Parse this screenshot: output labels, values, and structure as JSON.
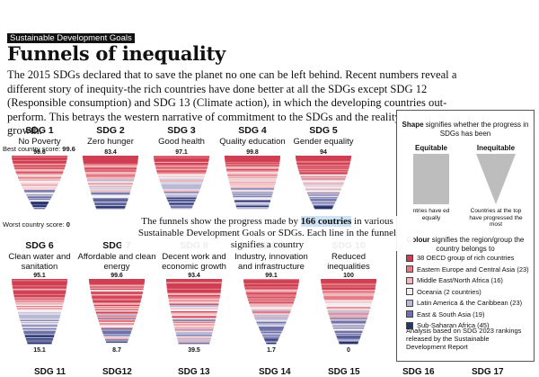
{
  "topic_label": "Sustainable Development Goals",
  "headline": "Funnels of inequality",
  "intro": "The 2015 SDGs declared that to save the planet no one can be left behind. Recent numbers reveal a different story of inequity-the rich countries have done better at all the SDGs except SDG 12 (Responsible consumption) and SDG 13 (Climate action), in which the developing countries out-perform. This betrays the western narrative of commitment to the SDGs and the reality of unequal growth.",
  "axis_notes": {
    "best_label": "Best country score:",
    "worst_label": "Worst country score:"
  },
  "caption": {
    "before": "The funnels show the progress made by ",
    "highlight": "166 coutries",
    "after": " in various Sustainable Development Goals or SDGs. Each line in the funnel signifies a country"
  },
  "legend": {
    "shape_heading_bold": "Shape",
    "shape_heading_rest": " signifies whether the progress in SDGs has been",
    "equitable_label": "Equitable",
    "equitable_desc": "ntries have ed equally",
    "inequitable_label": "Inequitable",
    "inequitable_desc": "Countries at the top have progressed the most",
    "color_heading_bold": "Colour",
    "color_heading_rest": " signifies the region/group the country belongs to",
    "items": [
      {
        "label": "38 OECD group of rich countries",
        "color": "#cf3f52"
      },
      {
        "label": "Eastern Europe and Central Asia (23)",
        "color": "#e57a84"
      },
      {
        "label": "Middle East/North Africa (16)",
        "color": "#f1b9be"
      },
      {
        "label": "Oceania (2 countries)",
        "color": "#f5eef0"
      },
      {
        "label": "Latin America & the Caribbean (23)",
        "color": "#b9b9d7"
      },
      {
        "label": "East & South Asia (19)",
        "color": "#6f72a8"
      },
      {
        "label": "Sub-Saharan Africa (45)",
        "color": "#27356d"
      }
    ],
    "note": "Analysis based on SDG 2023 rankings released by the Sustainable Development Report"
  },
  "chart_data": {
    "type": "funnel",
    "series": [
      {
        "sdg": "SDG 1",
        "name": "No Poverty",
        "best": 99.6,
        "worst": 0
      },
      {
        "sdg": "SDG 2",
        "name": "Zero hunger",
        "best": 83.4,
        "worst": null
      },
      {
        "sdg": "SDG 3",
        "name": "Good health",
        "best": 97.1,
        "worst": null
      },
      {
        "sdg": "SDG 4",
        "name": "Quality education",
        "best": 99.8,
        "worst": null
      },
      {
        "sdg": "SDG 5",
        "name": "Gender equality",
        "best": 94,
        "worst": null
      },
      {
        "sdg": "SDG 6",
        "name": "Clean water and sanitation",
        "best": 95.1,
        "worst": 15.1
      },
      {
        "sdg": "SDG 7",
        "name": "Affordable and clean energy",
        "best": 99.6,
        "worst": 8.7
      },
      {
        "sdg": "SDG 8",
        "name": "Decent work and economic growth",
        "best": 93.4,
        "worst": 39.5
      },
      {
        "sdg": "SDG 9",
        "name": "Industry, innovation and infrastructure",
        "best": 99.1,
        "worst": 1.7
      },
      {
        "sdg": "SDG 10",
        "name": "Reduced inequalities",
        "best": 100,
        "worst": 0
      }
    ],
    "bottom_row": [
      "SDG 11",
      "SDG12",
      "SDG 13",
      "SDG 14",
      "SDG 15",
      "SDG 16",
      "SDG 17"
    ]
  }
}
